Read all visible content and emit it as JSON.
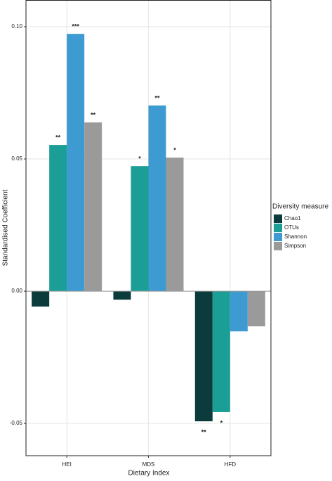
{
  "chart_data": {
    "type": "bar",
    "x_label": "Dietary Index",
    "y_label": "Standardised Coefficient",
    "legend_title": "Diversity measure",
    "categories": [
      "HEI",
      "MDS",
      "HFD"
    ],
    "series": [
      {
        "name": "Chao1",
        "color": "#0b3b3b",
        "values": [
          -0.0058,
          -0.0032,
          -0.0492
        ],
        "significance": [
          null,
          null,
          "**"
        ]
      },
      {
        "name": "OTUs",
        "color": "#1a9e96",
        "values": [
          0.0553,
          0.0473,
          -0.0457
        ],
        "significance": [
          "**",
          "*",
          "*"
        ]
      },
      {
        "name": "Shannon",
        "color": "#3d9bd1",
        "values": [
          0.0973,
          0.0702,
          -0.0152
        ],
        "significance": [
          "***",
          "**",
          null
        ]
      },
      {
        "name": "Simpson",
        "color": "#9a9a9a",
        "values": [
          0.0638,
          0.0505,
          -0.0133
        ],
        "significance": [
          "**",
          "*",
          null
        ]
      }
    ],
    "ylim": [
      -0.0622,
      0.1101
    ],
    "yticks": [
      {
        "value": -0.05,
        "label": "-0.05"
      },
      {
        "value": 0,
        "label": "0.00"
      },
      {
        "value": 0.05,
        "label": "0.05"
      },
      {
        "value": 0.1,
        "label": "0.10"
      }
    ],
    "grid": true,
    "legend": "right"
  }
}
